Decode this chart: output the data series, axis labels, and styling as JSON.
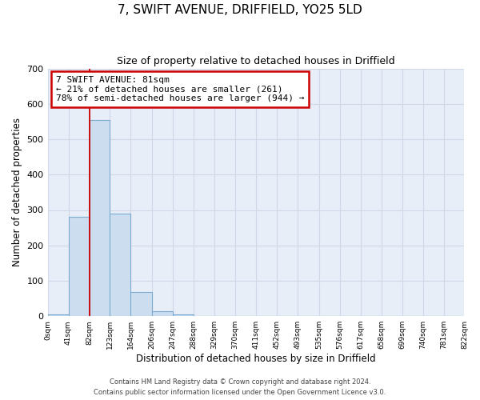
{
  "title": "7, SWIFT AVENUE, DRIFFIELD, YO25 5LD",
  "subtitle": "Size of property relative to detached houses in Driffield",
  "xlabel": "Distribution of detached houses by size in Driffield",
  "ylabel": "Number of detached properties",
  "bar_color": "#ccddf0",
  "bar_edge_color": "#7aaad0",
  "bin_edges": [
    0,
    41,
    82,
    123,
    164,
    206,
    247,
    288,
    329,
    370,
    411,
    452,
    493,
    535,
    576,
    617,
    658,
    699,
    740,
    781,
    822
  ],
  "bin_labels": [
    "0sqm",
    "41sqm",
    "82sqm",
    "123sqm",
    "164sqm",
    "206sqm",
    "247sqm",
    "288sqm",
    "329sqm",
    "370sqm",
    "411sqm",
    "452sqm",
    "493sqm",
    "535sqm",
    "576sqm",
    "617sqm",
    "658sqm",
    "699sqm",
    "740sqm",
    "781sqm",
    "822sqm"
  ],
  "bar_heights": [
    6,
    280,
    555,
    290,
    68,
    13,
    6,
    0,
    0,
    0,
    0,
    0,
    0,
    0,
    0,
    0,
    0,
    0,
    0,
    0
  ],
  "ylim": [
    0,
    700
  ],
  "yticks": [
    0,
    100,
    200,
    300,
    400,
    500,
    600,
    700
  ],
  "property_line_x": 82,
  "annotation_title": "7 SWIFT AVENUE: 81sqm",
  "annotation_line1": "← 21% of detached houses are smaller (261)",
  "annotation_line2": "78% of semi-detached houses are larger (944) →",
  "annotation_box_color": "#ffffff",
  "annotation_box_edge_color": "#cc0000",
  "property_line_color": "#cc0000",
  "footnote1": "Contains HM Land Registry data © Crown copyright and database right 2024.",
  "footnote2": "Contains public sector information licensed under the Open Government Licence v3.0.",
  "plot_bg_color": "#e8eef8",
  "fig_bg_color": "#ffffff",
  "grid_color": "#d0d8e8"
}
